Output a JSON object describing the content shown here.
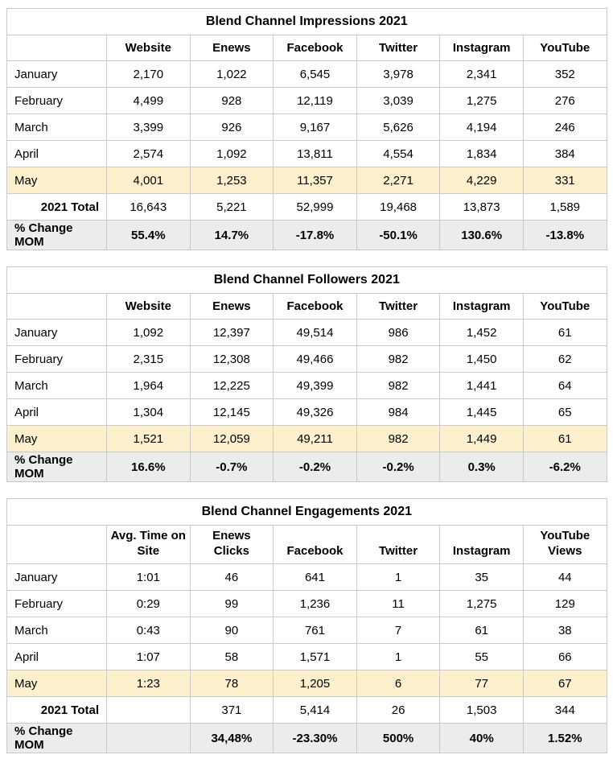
{
  "theme": {
    "page_background": "#FFFFFF",
    "highlight_row_bg": "#FCF0CD",
    "change_row_bg": "#ECECEC",
    "border_color": "#C9C9C9",
    "text_color": "#000000"
  },
  "chart_data": [
    {
      "type": "table",
      "title": "Blend Channel Impressions 2021",
      "columns": [
        "",
        "Website",
        "Enews",
        "Facebook",
        "Twitter",
        "Instagram",
        "YouTube"
      ],
      "rows": [
        {
          "label": "January",
          "style": "month",
          "values": [
            "2,170",
            "1,022",
            "6,545",
            "3,978",
            "2,341",
            "352"
          ]
        },
        {
          "label": "February",
          "style": "month",
          "values": [
            "4,499",
            "928",
            "12,119",
            "3,039",
            "1,275",
            "276"
          ]
        },
        {
          "label": "March",
          "style": "month",
          "values": [
            "3,399",
            "926",
            "9,167",
            "5,626",
            "4,194",
            "246"
          ]
        },
        {
          "label": "April",
          "style": "month",
          "values": [
            "2,574",
            "1,092",
            "13,811",
            "4,554",
            "1,834",
            "384"
          ]
        },
        {
          "label": "May",
          "style": "highlight",
          "values": [
            "4,001",
            "1,253",
            "11,357",
            "2,271",
            "4,229",
            "331"
          ]
        },
        {
          "label": "2021 Total",
          "style": "total",
          "values": [
            "16,643",
            "5,221",
            "52,999",
            "19,468",
            "13,873",
            "1,589"
          ]
        },
        {
          "label": "% Change MOM",
          "style": "change",
          "values": [
            "55.4%",
            "14.7%",
            "-17.8%",
            "-50.1%",
            "130.6%",
            "-13.8%"
          ]
        }
      ]
    },
    {
      "type": "table",
      "title": "Blend Channel Followers 2021",
      "columns": [
        "",
        "Website",
        "Enews",
        "Facebook",
        "Twitter",
        "Instagram",
        "YouTube"
      ],
      "rows": [
        {
          "label": "January",
          "style": "month",
          "values": [
            "1,092",
            "12,397",
            "49,514",
            "986",
            "1,452",
            "61"
          ]
        },
        {
          "label": "February",
          "style": "month",
          "values": [
            "2,315",
            "12,308",
            "49,466",
            "982",
            "1,450",
            "62"
          ]
        },
        {
          "label": "March",
          "style": "month",
          "values": [
            "1,964",
            "12,225",
            "49,399",
            "982",
            "1,441",
            "64"
          ]
        },
        {
          "label": "April",
          "style": "month",
          "values": [
            "1,304",
            "12,145",
            "49,326",
            "984",
            "1,445",
            "65"
          ]
        },
        {
          "label": "May",
          "style": "highlight",
          "values": [
            "1,521",
            "12,059",
            "49,211",
            "982",
            "1,449",
            "61"
          ]
        },
        {
          "label": "% Change MOM",
          "style": "change",
          "values": [
            "16.6%",
            "-0.7%",
            "-0.2%",
            "-0.2%",
            "0.3%",
            "-6.2%"
          ]
        }
      ]
    },
    {
      "type": "table",
      "title": "Blend Channel Engagements 2021",
      "columns": [
        "",
        "Avg. Time on\nSite",
        "Enews\nClicks",
        "Facebook",
        "Twitter",
        "Instagram",
        "YouTube\nViews"
      ],
      "rows": [
        {
          "label": "January",
          "style": "month",
          "values": [
            "1:01",
            "46",
            "641",
            "1",
            "35",
            "44"
          ]
        },
        {
          "label": "February",
          "style": "month",
          "values": [
            "0:29",
            "99",
            "1,236",
            "11",
            "1,275",
            "129"
          ]
        },
        {
          "label": "March",
          "style": "month",
          "values": [
            "0:43",
            "90",
            "761",
            "7",
            "61",
            "38"
          ]
        },
        {
          "label": "April",
          "style": "month",
          "values": [
            "1:07",
            "58",
            "1,571",
            "1",
            "55",
            "66"
          ]
        },
        {
          "label": "May",
          "style": "highlight",
          "values": [
            "1:23",
            "78",
            "1,205",
            "6",
            "77",
            "67"
          ]
        },
        {
          "label": "2021 Total",
          "style": "total",
          "values": [
            "",
            "371",
            "5,414",
            "26",
            "1,503",
            "344"
          ]
        },
        {
          "label": "% Change MOM",
          "style": "change",
          "values": [
            "",
            "34,48%",
            "-23.30%",
            "500%",
            "40%",
            "1.52%"
          ]
        }
      ]
    }
  ]
}
